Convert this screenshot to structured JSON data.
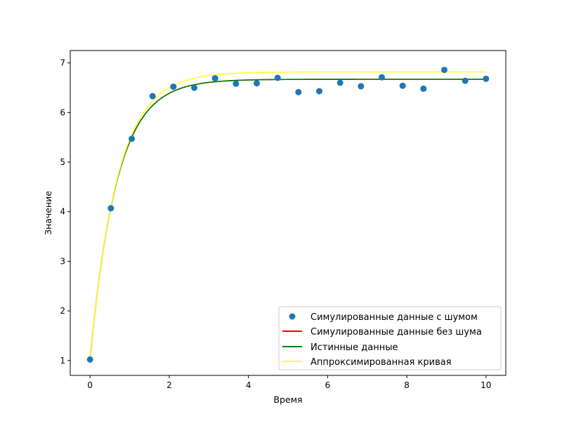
{
  "chart_data": {
    "type": "scatter",
    "title": "",
    "xlabel": "Время",
    "ylabel": "Значение",
    "xlim": [
      -0.5,
      10.5
    ],
    "ylim": [
      0.7,
      7.25
    ],
    "xticks": [
      0,
      2,
      4,
      6,
      8,
      10
    ],
    "yticks": [
      1,
      2,
      3,
      4,
      5,
      6,
      7
    ],
    "grid": false,
    "legend_position": "lower-right",
    "series": [
      {
        "name": "Симулированные данные с шумом",
        "kind": "scatter",
        "color": "#1f77b4",
        "x": [
          0.0,
          0.526,
          1.053,
          1.579,
          2.105,
          2.632,
          3.158,
          3.684,
          4.211,
          4.737,
          5.263,
          5.789,
          6.316,
          6.842,
          7.368,
          7.895,
          8.421,
          8.947,
          9.474,
          10.0
        ],
        "y": [
          1.02,
          4.07,
          5.47,
          6.33,
          6.52,
          6.5,
          6.69,
          6.58,
          6.59,
          6.7,
          6.41,
          6.43,
          6.6,
          6.53,
          6.71,
          6.54,
          6.48,
          6.86,
          6.64,
          6.68
        ]
      },
      {
        "name": "Симулированные данные без шума",
        "kind": "line",
        "color": "#ff0000",
        "model": {
          "a": 6.67,
          "b": 1.0,
          "k": 1.5
        }
      },
      {
        "name": "Истинные данные",
        "kind": "line",
        "color": "#008000",
        "model": {
          "a": 6.67,
          "b": 1.0,
          "k": 1.5
        }
      },
      {
        "name": "Аппроксимированная кривая",
        "kind": "line",
        "color": "#ffff33",
        "model": {
          "a": 6.82,
          "b": 1.0,
          "k": 1.45
        }
      }
    ]
  }
}
